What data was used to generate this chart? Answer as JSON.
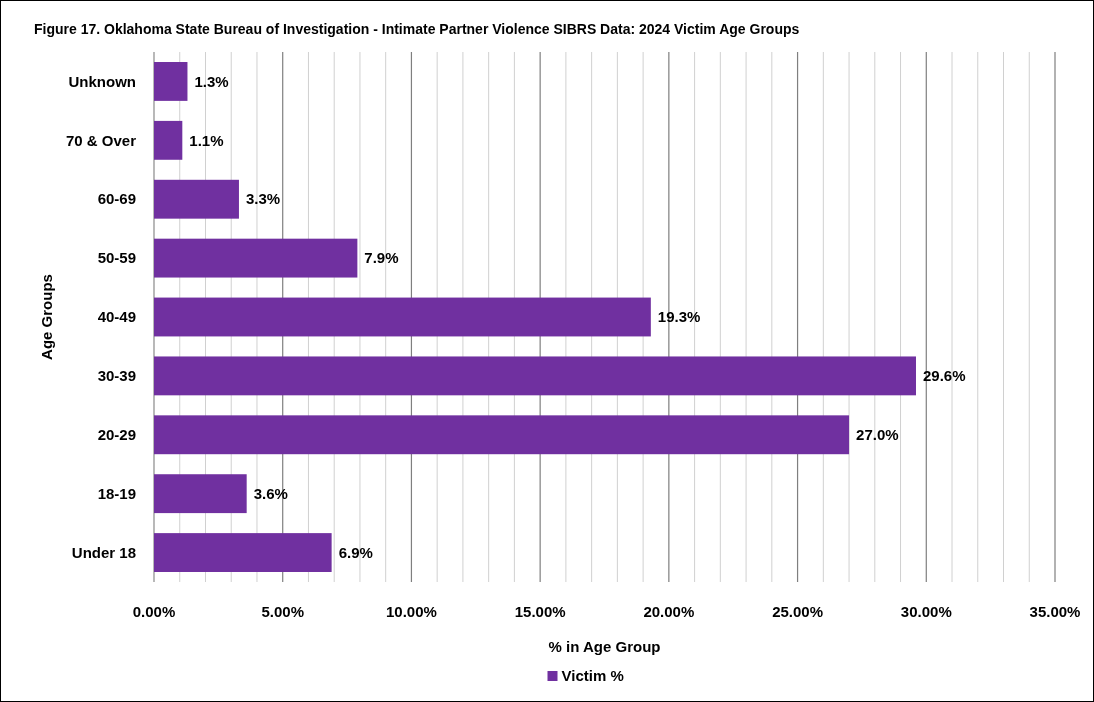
{
  "chart_data": {
    "type": "bar",
    "orientation": "horizontal",
    "title": "Figure 17. Oklahoma State Bureau of Investigation - Intimate Partner Violence SIBRS Data: 2024 Victim Age Groups",
    "xlabel": "% in Age Group",
    "ylabel": "Age Groups",
    "categories": [
      "Unknown",
      "70 & Over",
      "60-69",
      "50-59",
      "40-49",
      "30-39",
      "20-29",
      "18-19",
      "Under 18"
    ],
    "series": [
      {
        "name": "Victim %",
        "color": "#7030a0",
        "values": [
          1.3,
          1.1,
          3.3,
          7.9,
          19.3,
          29.6,
          27.0,
          3.6,
          6.9
        ],
        "value_labels": [
          "1.3%",
          "1.1%",
          "3.3%",
          "7.9%",
          "19.3%",
          "29.6%",
          "27.0%",
          "3.6%",
          "6.9%"
        ]
      }
    ],
    "xlim": [
      0,
      35
    ],
    "xticks": [
      {
        "value": 0,
        "label": "0.00%"
      },
      {
        "value": 1,
        "label": null
      },
      {
        "value": 2,
        "label": null
      },
      {
        "value": 3,
        "label": null
      },
      {
        "value": 4,
        "label": null
      },
      {
        "value": 5,
        "label": "5.00%"
      },
      {
        "value": 6,
        "label": null
      },
      {
        "value": 7,
        "label": null
      },
      {
        "value": 8,
        "label": null
      },
      {
        "value": 9,
        "label": null
      },
      {
        "value": 10,
        "label": "10.00%"
      },
      {
        "value": 11,
        "label": null
      },
      {
        "value": 12,
        "label": null
      },
      {
        "value": 13,
        "label": null
      },
      {
        "value": 14,
        "label": null
      },
      {
        "value": 15,
        "label": "15.00%"
      },
      {
        "value": 16,
        "label": null
      },
      {
        "value": 17,
        "label": null
      },
      {
        "value": 18,
        "label": null
      },
      {
        "value": 19,
        "label": null
      },
      {
        "value": 20,
        "label": "20.00%"
      },
      {
        "value": 21,
        "label": null
      },
      {
        "value": 22,
        "label": null
      },
      {
        "value": 23,
        "label": null
      },
      {
        "value": 24,
        "label": null
      },
      {
        "value": 25,
        "label": "25.00%"
      },
      {
        "value": 26,
        "label": null
      },
      {
        "value": 27,
        "label": null
      },
      {
        "value": 28,
        "label": null
      },
      {
        "value": 29,
        "label": null
      },
      {
        "value": 30,
        "label": "30.00%"
      },
      {
        "value": 31,
        "label": null
      },
      {
        "value": 32,
        "label": null
      },
      {
        "value": 33,
        "label": null
      },
      {
        "value": 34,
        "label": null
      },
      {
        "value": 35,
        "label": "35.00%"
      }
    ],
    "grid": "x",
    "legend": "bottom"
  }
}
